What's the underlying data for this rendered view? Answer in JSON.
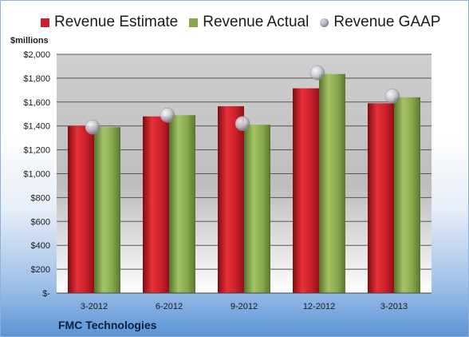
{
  "colors": {
    "estimate": "#c8202a",
    "actual": "#86a84a",
    "gaap": "#c9ccd3"
  },
  "legend": [
    {
      "label": "Revenue Estimate",
      "color": "#c8202a",
      "shape": "square"
    },
    {
      "label": "Revenue Actual",
      "color": "#86a84a",
      "shape": "square"
    },
    {
      "label": "Revenue GAAP",
      "color": "#c9ccd3",
      "shape": "circle"
    }
  ],
  "unit_label": "$millions",
  "company": "FMC Technologies",
  "chart_data": {
    "type": "bar",
    "categories": [
      "3-2012",
      "6-2012",
      "9-2012",
      "12-2012",
      "3-2013"
    ],
    "series": [
      {
        "name": "Revenue Estimate",
        "values": [
          1400,
          1480,
          1565,
          1715,
          1590
        ]
      },
      {
        "name": "Revenue Actual",
        "values": [
          1390,
          1490,
          1410,
          1835,
          1640
        ]
      },
      {
        "name": "Revenue GAAP",
        "values": [
          1390,
          1490,
          1420,
          1845,
          1650
        ],
        "type": "scatter"
      }
    ],
    "ylim": [
      0,
      2000
    ],
    "yticks": [
      0,
      200,
      400,
      600,
      800,
      1000,
      1200,
      1400,
      1600,
      1800,
      2000
    ],
    "ytick_labels": [
      "$-",
      "$200",
      "$400",
      "$600",
      "$800",
      "$1,000",
      "$1,200",
      "$1,400",
      "$1,600",
      "$1,800",
      "$2,000"
    ],
    "grid": true,
    "legend_position": "top"
  }
}
